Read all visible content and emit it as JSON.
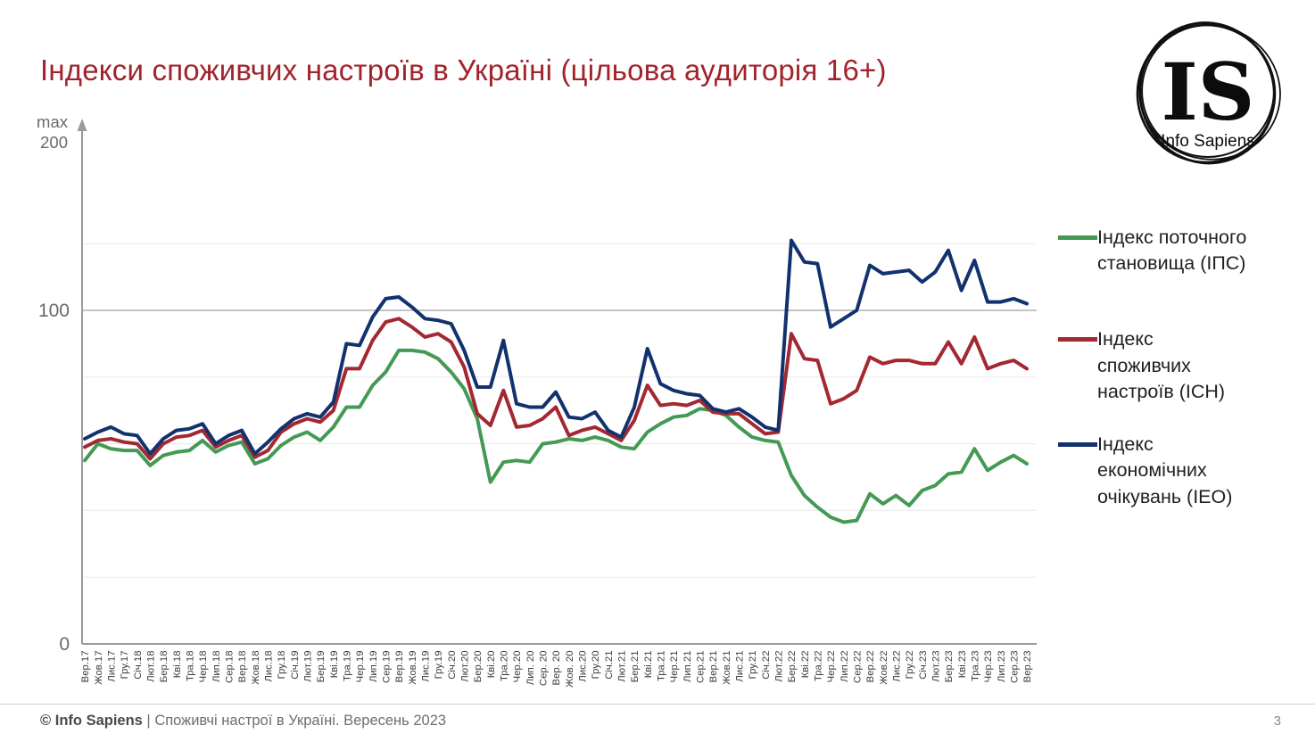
{
  "title": "Індекси споживчих настроїв в Україні (цільова аудиторія 16+)",
  "logo": {
    "initials": "IS",
    "name": "Info Sapiens"
  },
  "footer": {
    "brand": "© Info Sapiens",
    "separator": " | ",
    "text": "Споживчі настрої в Україні. Вересень 2023",
    "page_number": "3"
  },
  "colors": {
    "title": "#A1242C",
    "ipc_green": "#449A54",
    "ich_red": "#A32832",
    "ieo_blue": "#12326E",
    "gridline": "#ebebeb",
    "gridline_100": "#b0b0b0",
    "axis": "#9a9a9a",
    "x_label": "#3d3d3d",
    "y_label": "#6a6a6a"
  },
  "chart_data": {
    "type": "line",
    "title": "Індекси споживчих настроїв в Україні (цільова аудиторія 16+)",
    "legend_position": "right",
    "grid": true,
    "ylim": [
      0,
      200
    ],
    "y_axis": {
      "max_label": "max",
      "max_value_label": "200",
      "tick_labels": [
        "100",
        "0"
      ],
      "gridline_values": [
        20,
        40,
        60,
        80,
        100,
        120
      ],
      "emphasized_gridline": 100
    },
    "x_labels": [
      "Вер.17",
      "Жов.17",
      "Лис.17",
      "Гру.17",
      "Січ.18",
      "Лют.18",
      "Бер.18",
      "Кві.18",
      "Тра.18",
      "Чер.18",
      "Лип.18",
      "Сер.18",
      "Вер.18",
      "Жов.18",
      "Лис.18",
      "Гру.18",
      "Січ.19",
      "Лют.19",
      "Бер.19",
      "Кві.19",
      "Тра.19",
      "Чер.19",
      "Лип.19",
      "Сер.19",
      "Вер.19",
      "Жов.19",
      "Лис.19",
      "Гру.19",
      "Січ.20",
      "Лют.20",
      "Бер.20",
      "Кві.20",
      "Тра.20",
      "Чер.20",
      "Лип. 20",
      "Сер. 20",
      "Вер. 20",
      "Жов. 20",
      "Лис.20",
      "Гру.20",
      "Січ.21",
      "Лют.21",
      "Бер.21",
      "Кві.21",
      "Тра.21",
      "Чер.21",
      "Лип.21",
      "Сер.21",
      "Вер.21",
      "Жов.21",
      "Лис.21",
      "Гру.21",
      "Січ.22",
      "Лют.22",
      "Бер.22",
      "Кві.22",
      "Тра.22",
      "Чер.22",
      "Лип.22",
      "Сер.22",
      "Вер.22",
      "Жов.22",
      "Лис.22",
      "Гру.22",
      "Січ.23",
      "Лют.23",
      "Бер.23",
      "Кві.23",
      "Тра.23",
      "Чер.23",
      "Лип.23",
      "Сер.23",
      "Вер.23"
    ],
    "series": [
      {
        "name": "Індекс поточного становища (ІПС)",
        "legend_label": "Індекс поточного\nстановища (ІПС)",
        "color": "#449A54",
        "values": [
          55,
          60,
          58.5,
          58,
          58,
          53.5,
          56.5,
          57.5,
          58,
          61,
          57.5,
          59.5,
          60.5,
          54,
          55.5,
          59.5,
          62,
          63.5,
          61,
          65,
          71,
          71,
          77.5,
          81.5,
          88,
          88,
          87.5,
          85.5,
          81.5,
          76.5,
          67.5,
          48.5,
          54.5,
          55,
          54.5,
          60,
          60.5,
          61.5,
          61,
          62,
          61,
          59,
          58.5,
          63.5,
          66,
          68,
          68.5,
          70.5,
          70,
          68.5,
          65,
          62,
          61,
          60.5,
          50.5,
          44.5,
          41,
          38,
          36.5,
          37,
          45,
          42,
          44.5,
          41.5,
          46,
          47.5,
          51,
          51.5,
          58.5,
          52,
          54.5,
          56.5,
          54
        ]
      },
      {
        "name": "Індекс споживчих настроїв (ІСН)",
        "legend_label": "Індекс\nспоживчих\nнастроїв (ІСН)",
        "color": "#A32832",
        "values": [
          59,
          61,
          61.5,
          60.5,
          60,
          55.5,
          60,
          62,
          62.5,
          64,
          59,
          61,
          62.5,
          56,
          58,
          63.5,
          66,
          67.5,
          66.5,
          70,
          82.5,
          82.5,
          91,
          96.5,
          97.5,
          95,
          92,
          93,
          90.5,
          83,
          69,
          65.5,
          76,
          65,
          65.5,
          67.5,
          71,
          62.5,
          64,
          65,
          63,
          61,
          67,
          77.5,
          71.5,
          72,
          71.5,
          73,
          69.5,
          69,
          69,
          66,
          63,
          63.5,
          93,
          85.5,
          85,
          72,
          73.5,
          76,
          86,
          84,
          85,
          85,
          84,
          84,
          90.5,
          84,
          92,
          82.5,
          84,
          85,
          82.5
        ]
      },
      {
        "name": "Індекс економічних очікувань (ІЕО)",
        "legend_label": "Індекс\nекономічних\nочікувань (ІЕО)",
        "color": "#12326E",
        "values": [
          61.5,
          63.5,
          65,
          63,
          62.5,
          57,
          61.5,
          64,
          64.5,
          66,
          60,
          62.5,
          64,
          57,
          60.5,
          64.5,
          67.5,
          69,
          68,
          72.5,
          90,
          89.5,
          98,
          103.5,
          104,
          101,
          97.5,
          97,
          96,
          88,
          77,
          77,
          91,
          72,
          71,
          71,
          75.5,
          68,
          67.5,
          69.5,
          64,
          62,
          71,
          88.5,
          78,
          76,
          75,
          74.5,
          70.5,
          69.5,
          70.5,
          68,
          65,
          64,
          121,
          114.5,
          114,
          95,
          97.5,
          100,
          113.5,
          111,
          111.5,
          112,
          108.5,
          111.5,
          118,
          106,
          115,
          102.5,
          102.5,
          103.5,
          102
        ]
      }
    ]
  }
}
